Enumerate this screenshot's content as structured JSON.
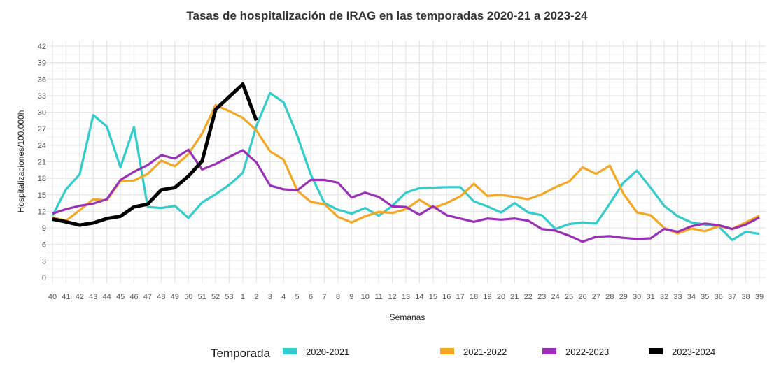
{
  "chart_data": {
    "type": "line",
    "title": "Tasas de hospitalización de IRAG en las temporadas 2020-21 a 2023-24",
    "xlabel": "Semanas",
    "ylabel": "Hospitalizaciones/100.000h",
    "ylim": [
      0,
      42
    ],
    "yticks": [
      0,
      3,
      6,
      9,
      12,
      15,
      18,
      21,
      24,
      27,
      30,
      33,
      36,
      39,
      42
    ],
    "grid": true,
    "legend_position": "bottom",
    "legend_title": "Temporada",
    "categories": [
      "40",
      "41",
      "42",
      "43",
      "44",
      "45",
      "46",
      "47",
      "48",
      "49",
      "50",
      "51",
      "52",
      "53",
      "1",
      "2",
      "3",
      "4",
      "5",
      "6",
      "7",
      "8",
      "9",
      "10",
      "11",
      "12",
      "13",
      "14",
      "15",
      "16",
      "17",
      "18",
      "19",
      "20",
      "21",
      "22",
      "23",
      "24",
      "25",
      "26",
      "27",
      "28",
      "29",
      "30",
      "31",
      "32",
      "33",
      "34",
      "35",
      "36",
      "37",
      "38",
      "39"
    ],
    "series": [
      {
        "name": "2020-2021",
        "color": "#33cccc",
        "values": [
          11.2,
          16.0,
          18.7,
          29.5,
          27.4,
          20.0,
          27.3,
          12.8,
          12.6,
          13.0,
          10.8,
          13.6,
          15.1,
          16.8,
          19.0,
          27.5,
          33.5,
          31.8,
          25.8,
          18.7,
          13.5,
          12.3,
          11.6,
          12.6,
          11.2,
          13.0,
          15.4,
          16.2,
          16.3,
          16.4,
          16.4,
          13.8,
          12.9,
          11.8,
          13.5,
          11.8,
          11.3,
          8.8,
          9.7,
          10.0,
          9.8,
          13.4,
          17.2,
          19.4,
          16.3,
          13.0,
          11.1,
          10.0,
          9.6,
          9.3,
          6.8,
          8.3,
          7.9
        ]
      },
      {
        "name": "2021-2022",
        "color": "#f5a623",
        "values": [
          10.9,
          10.3,
          12.2,
          14.2,
          14.0,
          17.5,
          17.6,
          18.8,
          21.2,
          20.2,
          22.4,
          26.1,
          31.3,
          30.2,
          29.0,
          26.7,
          22.9,
          21.4,
          15.8,
          13.7,
          13.3,
          11.0,
          10.0,
          11.1,
          11.9,
          11.7,
          12.4,
          14.1,
          12.6,
          13.5,
          14.7,
          17.0,
          14.8,
          15.0,
          14.6,
          14.2,
          15.1,
          16.4,
          17.4,
          20.0,
          18.8,
          20.3,
          15.2,
          11.8,
          11.3,
          9.0,
          8.0,
          8.9,
          8.4,
          9.3,
          8.8,
          10.0,
          11.2
        ]
      },
      {
        "name": "2022-2023",
        "color": "#9b30b8",
        "values": [
          11.6,
          12.4,
          13.0,
          13.4,
          14.2,
          17.7,
          19.2,
          20.4,
          22.2,
          21.6,
          23.2,
          19.6,
          20.6,
          21.9,
          23.1,
          20.9,
          16.7,
          16.0,
          15.8,
          17.7,
          17.7,
          17.2,
          14.5,
          15.4,
          14.6,
          12.9,
          12.8,
          11.4,
          12.9,
          11.3,
          10.7,
          10.1,
          10.7,
          10.5,
          10.7,
          10.3,
          8.8,
          8.5,
          7.6,
          6.5,
          7.4,
          7.5,
          7.2,
          7.0,
          7.1,
          8.8,
          8.3,
          9.3,
          9.8,
          9.5,
          8.8,
          9.6,
          10.9
        ]
      },
      {
        "name": "2023-2024",
        "color": "#000000",
        "values": [
          10.6,
          10.1,
          9.5,
          9.9,
          10.7,
          11.1,
          12.8,
          13.3,
          15.9,
          16.3,
          18.4,
          21.1,
          30.5,
          32.8,
          35.1,
          28.5
        ]
      }
    ]
  }
}
